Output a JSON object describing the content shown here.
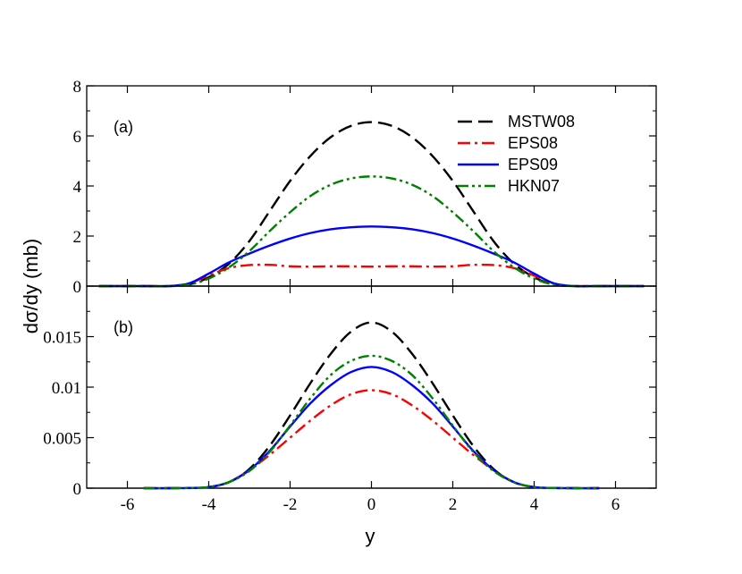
{
  "colors": {
    "MSTW08": "#000000",
    "EPS08": "#ff0000",
    "EPS09": "#0000ff",
    "HKN07": "#008000"
  },
  "chart_data": [
    {
      "type": "line",
      "panel_label": "(a)",
      "xlabel": "y",
      "ylabel": "dσ/dy (mb)",
      "xlim": [
        -7,
        7
      ],
      "ylim": [
        0,
        8
      ],
      "x_ticks": [
        -6,
        -4,
        -2,
        0,
        2,
        4,
        6
      ],
      "y_ticks": [
        0,
        2,
        4,
        6,
        8
      ],
      "y_tick_labels": [
        "0",
        "2",
        "4",
        "6",
        "8"
      ],
      "grid": false,
      "legend_position": "top-right",
      "series": [
        {
          "name": "MSTW08",
          "style": "dashed",
          "color": "#000000",
          "x": [
            -6.7,
            -5.5,
            -5.0,
            -4.5,
            -4.0,
            -3.5,
            -3.0,
            -2.5,
            -2.0,
            -1.5,
            -1.0,
            -0.5,
            0.0,
            0.5,
            1.0,
            1.5,
            2.0,
            2.5,
            3.0,
            3.5,
            4.0,
            4.5,
            5.0,
            5.5,
            6.7
          ],
          "y": [
            0.0,
            0.0,
            0.0,
            0.06,
            0.35,
            0.9,
            1.8,
            3.0,
            4.2,
            5.2,
            5.95,
            6.4,
            6.55,
            6.4,
            5.95,
            5.2,
            4.2,
            3.0,
            1.8,
            0.9,
            0.35,
            0.06,
            0.0,
            0.0,
            0.0
          ]
        },
        {
          "name": "EPS08",
          "style": "dash-dot",
          "color": "#ff0000",
          "x": [
            -6.7,
            -5.5,
            -5.0,
            -4.5,
            -4.0,
            -3.5,
            -3.0,
            -2.5,
            -2.0,
            -1.5,
            -1.0,
            -0.5,
            0.0,
            0.5,
            1.0,
            1.5,
            2.0,
            2.5,
            3.0,
            3.5,
            4.0,
            4.5,
            5.0,
            5.5,
            6.7
          ],
          "y": [
            0.0,
            0.0,
            0.0,
            0.1,
            0.42,
            0.72,
            0.84,
            0.85,
            0.79,
            0.78,
            0.79,
            0.79,
            0.78,
            0.79,
            0.79,
            0.78,
            0.79,
            0.85,
            0.84,
            0.72,
            0.42,
            0.1,
            0.0,
            0.0,
            0.0
          ]
        },
        {
          "name": "EPS09",
          "style": "solid",
          "color": "#0000ff",
          "x": [
            -6.7,
            -5.5,
            -5.0,
            -4.5,
            -4.0,
            -3.5,
            -3.0,
            -2.5,
            -2.0,
            -1.5,
            -1.0,
            -0.5,
            0.0,
            0.5,
            1.0,
            1.5,
            2.0,
            2.5,
            3.0,
            3.5,
            4.0,
            4.5,
            5.0,
            5.5,
            6.7
          ],
          "y": [
            0.0,
            0.0,
            0.0,
            0.1,
            0.5,
            0.95,
            1.3,
            1.62,
            1.9,
            2.12,
            2.27,
            2.35,
            2.38,
            2.35,
            2.27,
            2.12,
            1.9,
            1.62,
            1.3,
            0.95,
            0.5,
            0.1,
            0.0,
            0.0,
            0.0
          ]
        },
        {
          "name": "HKN07",
          "style": "dash-dot-dot",
          "color": "#008000",
          "x": [
            -6.7,
            -5.5,
            -5.0,
            -4.5,
            -4.0,
            -3.5,
            -3.0,
            -2.5,
            -2.0,
            -1.5,
            -1.0,
            -0.5,
            0.0,
            0.5,
            1.0,
            1.5,
            2.0,
            2.5,
            3.0,
            3.5,
            4.0,
            4.5,
            5.0,
            5.5,
            6.7
          ],
          "y": [
            0.0,
            0.0,
            0.0,
            0.05,
            0.3,
            0.75,
            1.4,
            2.2,
            2.95,
            3.6,
            4.05,
            4.3,
            4.38,
            4.3,
            4.05,
            3.6,
            2.95,
            2.2,
            1.4,
            0.75,
            0.3,
            0.05,
            0.0,
            0.0,
            0.0
          ]
        }
      ]
    },
    {
      "type": "line",
      "panel_label": "(b)",
      "xlabel": "y",
      "ylabel": "dσ/dy (mb)",
      "xlim": [
        -7,
        7
      ],
      "ylim": [
        0,
        0.02
      ],
      "x_ticks": [
        -6,
        -4,
        -2,
        0,
        2,
        4,
        6
      ],
      "x_tick_labels": [
        "-6",
        "-4",
        "-2",
        "0",
        "2",
        "4",
        "6"
      ],
      "y_ticks": [
        0,
        0.005,
        0.01,
        0.015
      ],
      "y_tick_labels": [
        "0",
        "0.005",
        "0.01",
        "0.015"
      ],
      "grid": false,
      "series": [
        {
          "name": "MSTW08",
          "style": "dashed",
          "color": "#000000",
          "x": [
            -5.6,
            -5.0,
            -4.5,
            -4.0,
            -3.5,
            -3.0,
            -2.5,
            -2.0,
            -1.5,
            -1.0,
            -0.5,
            0.0,
            0.5,
            1.0,
            1.5,
            2.0,
            2.5,
            3.0,
            3.5,
            4.0,
            4.5,
            5.0,
            5.6
          ],
          "y": [
            0.0,
            0.0,
            2e-05,
            0.0001,
            0.0006,
            0.0019,
            0.0042,
            0.0072,
            0.0104,
            0.0133,
            0.0155,
            0.0164,
            0.0155,
            0.0133,
            0.0104,
            0.0072,
            0.0042,
            0.0019,
            0.0006,
            0.0001,
            2e-05,
            0.0,
            0.0
          ]
        },
        {
          "name": "EPS08",
          "style": "dash-dot",
          "color": "#ff0000",
          "x": [
            -5.6,
            -5.0,
            -4.5,
            -4.0,
            -3.5,
            -3.0,
            -2.5,
            -2.0,
            -1.5,
            -1.0,
            -0.5,
            0.0,
            0.5,
            1.0,
            1.5,
            2.0,
            2.5,
            3.0,
            3.5,
            4.0,
            4.5,
            5.0,
            5.6
          ],
          "y": [
            0.0,
            0.0,
            2e-05,
            0.0001,
            0.0006,
            0.0018,
            0.0033,
            0.005,
            0.0067,
            0.0082,
            0.0093,
            0.0097,
            0.0093,
            0.0082,
            0.0067,
            0.005,
            0.0033,
            0.0018,
            0.0006,
            0.0001,
            2e-05,
            0.0,
            0.0
          ]
        },
        {
          "name": "EPS09",
          "style": "solid",
          "color": "#0000ff",
          "x": [
            -5.6,
            -5.0,
            -4.5,
            -4.0,
            -3.5,
            -3.0,
            -2.5,
            -2.0,
            -1.5,
            -1.0,
            -0.5,
            0.0,
            0.5,
            1.0,
            1.5,
            2.0,
            2.5,
            3.0,
            3.5,
            4.0,
            4.5,
            5.0,
            5.6
          ],
          "y": [
            0.0,
            0.0,
            2e-05,
            0.0001,
            0.0006,
            0.0018,
            0.0037,
            0.0061,
            0.0084,
            0.0102,
            0.0115,
            0.012,
            0.0115,
            0.0102,
            0.0084,
            0.0061,
            0.0037,
            0.0018,
            0.0006,
            0.0001,
            2e-05,
            0.0,
            0.0
          ]
        },
        {
          "name": "HKN07",
          "style": "dash-dot-dot",
          "color": "#008000",
          "x": [
            -5.6,
            -5.0,
            -4.5,
            -4.0,
            -3.5,
            -3.0,
            -2.5,
            -2.0,
            -1.5,
            -1.0,
            -0.5,
            0.0,
            0.5,
            1.0,
            1.5,
            2.0,
            2.5,
            3.0,
            3.5,
            4.0,
            4.5,
            5.0,
            5.6
          ],
          "y": [
            0.0,
            0.0,
            2e-05,
            0.0001,
            0.0006,
            0.0017,
            0.0036,
            0.0062,
            0.0089,
            0.0112,
            0.0126,
            0.0131,
            0.0126,
            0.0112,
            0.0089,
            0.0062,
            0.0036,
            0.0017,
            0.0006,
            0.0001,
            2e-05,
            0.0,
            0.0
          ]
        }
      ]
    }
  ]
}
